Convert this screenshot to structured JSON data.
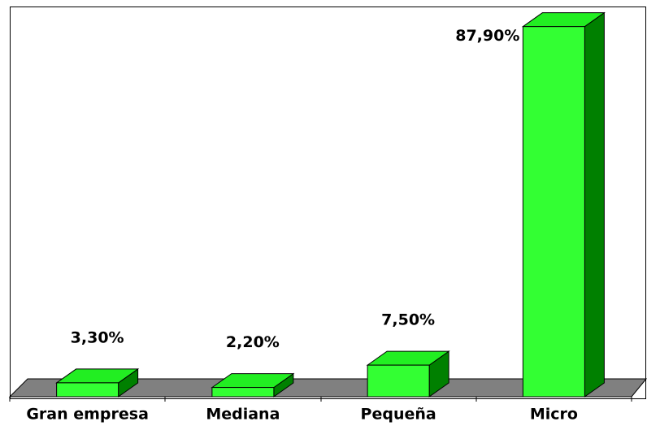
{
  "chart_data": {
    "type": "bar3d",
    "categories": [
      "Gran empresa",
      "Mediana",
      "Pequeña",
      "Micro"
    ],
    "values": [
      3.3,
      2.2,
      7.5,
      87.9
    ],
    "value_labels": [
      "3,30%",
      "2,20%",
      "7,50%",
      "87,90%"
    ],
    "color": "#33ff33"
  }
}
